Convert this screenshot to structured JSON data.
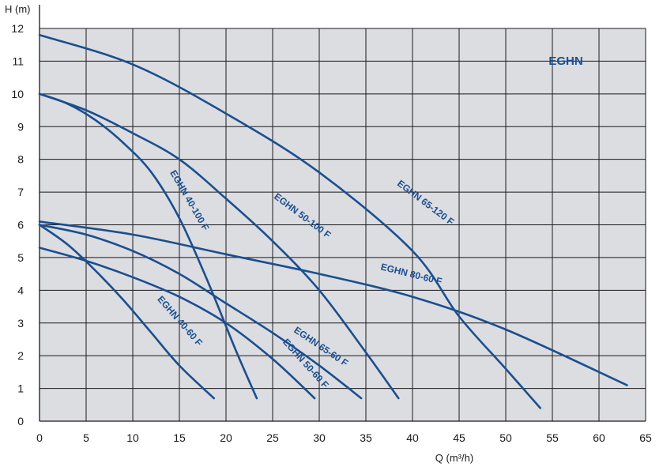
{
  "chart_data": {
    "type": "line",
    "title": "EGHN",
    "xlabel": "Q (m³/h)",
    "ylabel": "H (m)",
    "xlim": [
      0,
      65
    ],
    "ylim": [
      0,
      12
    ],
    "x_ticks": [
      0,
      5,
      10,
      15,
      20,
      25,
      30,
      35,
      40,
      45,
      50,
      55,
      60,
      65
    ],
    "y_ticks": [
      0,
      1,
      2,
      3,
      4,
      5,
      6,
      7,
      8,
      9,
      10,
      11,
      12
    ],
    "grid": true,
    "colors": {
      "plot_background": "#dcdde1",
      "curve": "#1a4f8f",
      "title": "#1a4f8f",
      "grid": "#1a1a1a"
    },
    "series": [
      {
        "name": "EGHN 40-60 F",
        "x": [
          0,
          3,
          6,
          9,
          12,
          15,
          18.7
        ],
        "y": [
          6.0,
          5.4,
          4.6,
          3.7,
          2.7,
          1.7,
          0.7
        ]
      },
      {
        "name": "EGHN 40-100 F",
        "x": [
          0,
          3,
          6,
          9,
          12,
          15,
          18,
          21,
          23.3
        ],
        "y": [
          10.0,
          9.7,
          9.2,
          8.5,
          7.6,
          6.2,
          4.3,
          2.2,
          0.7
        ]
      },
      {
        "name": "EGHN 50-60 F",
        "x": [
          0,
          5,
          10,
          15,
          20,
          25,
          29.5
        ],
        "y": [
          5.3,
          4.9,
          4.4,
          3.8,
          3.0,
          1.9,
          0.7
        ]
      },
      {
        "name": "EGHN 65-60 F",
        "x": [
          0,
          5,
          10,
          15,
          20,
          25,
          30,
          34.5
        ],
        "y": [
          6.0,
          5.7,
          5.2,
          4.5,
          3.6,
          2.7,
          1.7,
          0.7
        ]
      },
      {
        "name": "EGHN 50-100 F",
        "x": [
          0,
          5,
          10,
          15,
          20,
          25,
          30,
          35,
          38.5
        ],
        "y": [
          10.0,
          9.5,
          8.8,
          8.0,
          6.8,
          5.5,
          4.0,
          2.1,
          0.7
        ]
      },
      {
        "name": "EGHN 80-60 F",
        "x": [
          0,
          10,
          20,
          30,
          40,
          50,
          63
        ],
        "y": [
          6.1,
          5.7,
          5.1,
          4.5,
          3.8,
          2.8,
          1.1
        ]
      },
      {
        "name": "EGHN 65-120 F",
        "x": [
          0,
          10,
          20,
          30,
          40,
          45,
          50,
          53.7
        ],
        "y": [
          11.8,
          10.9,
          9.4,
          7.6,
          5.2,
          3.2,
          1.6,
          0.4
        ]
      }
    ],
    "annotations": [
      {
        "text": "EGHN 40-60 F",
        "x": 14.8,
        "y": 3.0,
        "angle": 49
      },
      {
        "text": "EGHN 40-100 F",
        "x": 15.8,
        "y": 6.7,
        "angle": 60
      },
      {
        "text": "EGHN 50-60 F",
        "x": 28.3,
        "y": 1.7,
        "angle": 48
      },
      {
        "text": "EGHN 65-60 F",
        "x": 30.0,
        "y": 2.2,
        "angle": 34
      },
      {
        "text": "EGHN 50-100 F",
        "x": 28.0,
        "y": 6.2,
        "angle": 37
      },
      {
        "text": "EGHN 80-60 F",
        "x": 39.8,
        "y": 4.4,
        "angle": 14
      },
      {
        "text": "EGHN 65-120 F",
        "x": 41.2,
        "y": 6.6,
        "angle": 37
      }
    ]
  }
}
